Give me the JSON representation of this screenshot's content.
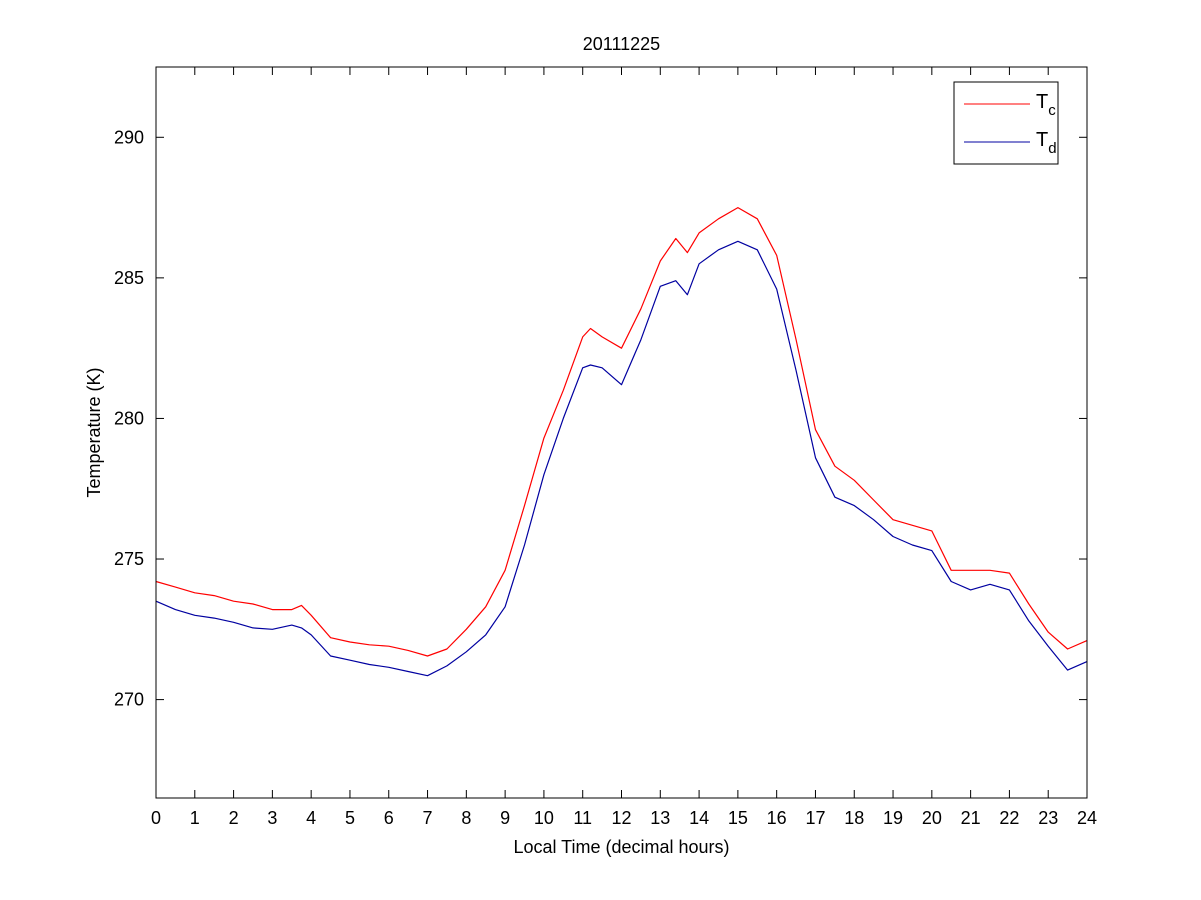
{
  "chart_data": {
    "type": "line",
    "title": "20111225",
    "xlabel": "Local Time (decimal hours)",
    "ylabel": "Temperature (K)",
    "xlim": [
      0,
      24
    ],
    "ylim": [
      266.5,
      292.5
    ],
    "xticks": [
      0,
      1,
      2,
      3,
      4,
      5,
      6,
      7,
      8,
      9,
      10,
      11,
      12,
      13,
      14,
      15,
      16,
      17,
      18,
      19,
      20,
      21,
      22,
      23,
      24
    ],
    "yticks": [
      270,
      275,
      280,
      285,
      290
    ],
    "grid": false,
    "legend_position": "top-right",
    "series": [
      {
        "name": "T",
        "subscript": "c",
        "color": "#ff0000",
        "x": [
          0,
          0.5,
          1,
          1.5,
          2,
          2.5,
          3,
          3.5,
          3.75,
          4,
          4.5,
          5,
          5.5,
          6,
          6.5,
          7,
          7.5,
          8,
          8.5,
          9,
          9.5,
          10,
          10.5,
          11,
          11.2,
          11.5,
          12,
          12.5,
          13,
          13.4,
          13.7,
          14,
          14.5,
          15,
          15.5,
          16,
          16.5,
          17,
          17.5,
          18,
          18.5,
          19,
          19.5,
          20,
          20.5,
          21,
          21.5,
          22,
          22.5,
          23,
          23.5,
          24
        ],
        "values": [
          274.2,
          274,
          273.8,
          273.7,
          273.5,
          273.4,
          273.2,
          273.2,
          273.35,
          273,
          272.2,
          272.05,
          271.95,
          271.9,
          271.75,
          271.55,
          271.8,
          272.5,
          273.3,
          274.6,
          276.9,
          279.3,
          281,
          282.9,
          283.2,
          282.9,
          282.5,
          283.9,
          285.6,
          286.4,
          285.9,
          286.6,
          287.1,
          287.5,
          287.1,
          285.8,
          282.8,
          279.6,
          278.3,
          277.8,
          277.1,
          276.4,
          276.2,
          276,
          274.6,
          274.6,
          274.6,
          274.5,
          273.4,
          272.4,
          271.8,
          272.1
        ]
      },
      {
        "name": "T",
        "subscript": "d",
        "color": "#0000a0",
        "x": [
          0,
          0.5,
          1,
          1.5,
          2,
          2.5,
          3,
          3.5,
          3.75,
          4,
          4.5,
          5,
          5.5,
          6,
          6.5,
          7,
          7.5,
          8,
          8.5,
          9,
          9.5,
          10,
          10.5,
          11,
          11.2,
          11.5,
          12,
          12.5,
          13,
          13.4,
          13.7,
          14,
          14.5,
          15,
          15.5,
          16,
          16.5,
          17,
          17.5,
          18,
          18.5,
          19,
          19.5,
          20,
          20.5,
          21,
          21.5,
          22,
          22.5,
          23,
          23.5,
          24
        ],
        "values": [
          273.5,
          273.2,
          273,
          272.9,
          272.75,
          272.55,
          272.5,
          272.65,
          272.55,
          272.3,
          271.55,
          271.4,
          271.25,
          271.15,
          271,
          270.85,
          271.2,
          271.7,
          272.3,
          273.3,
          275.5,
          278,
          280,
          281.8,
          281.9,
          281.8,
          281.2,
          282.8,
          284.7,
          284.9,
          284.4,
          285.5,
          286,
          286.3,
          286,
          284.6,
          281.7,
          278.6,
          277.2,
          276.9,
          276.4,
          275.8,
          275.5,
          275.3,
          274.2,
          273.9,
          274.1,
          273.9,
          272.8,
          271.9,
          271.05,
          271.35
        ]
      }
    ]
  }
}
